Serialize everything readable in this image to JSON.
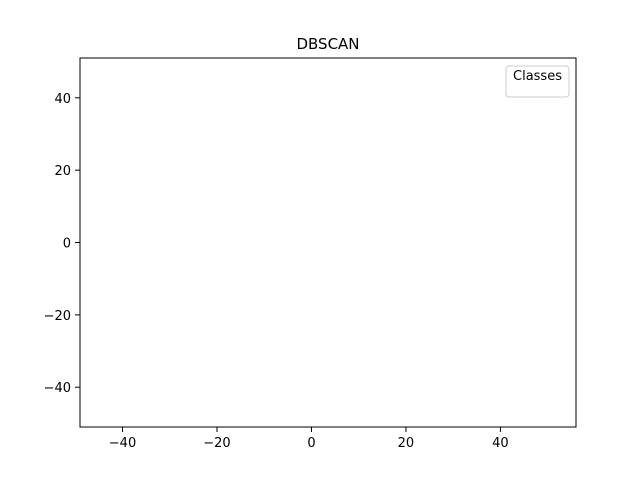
{
  "chart_data": {
    "type": "scatter",
    "title": "DBSCAN",
    "xlabel": "",
    "ylabel": "",
    "xlim": [
      -49,
      56
    ],
    "ylim": [
      -51,
      51
    ],
    "xticks": [
      -40,
      -20,
      0,
      20,
      40
    ],
    "yticks": [
      -40,
      -20,
      0,
      20,
      40
    ],
    "tick_labels_x": [
      "−40",
      "−20",
      "0",
      "20",
      "40"
    ],
    "tick_labels_y": [
      "−40",
      "−20",
      "0",
      "20",
      "40"
    ],
    "grid": false,
    "legend": {
      "title": "Classes",
      "placement": "top-right",
      "entries": []
    },
    "series": []
  }
}
